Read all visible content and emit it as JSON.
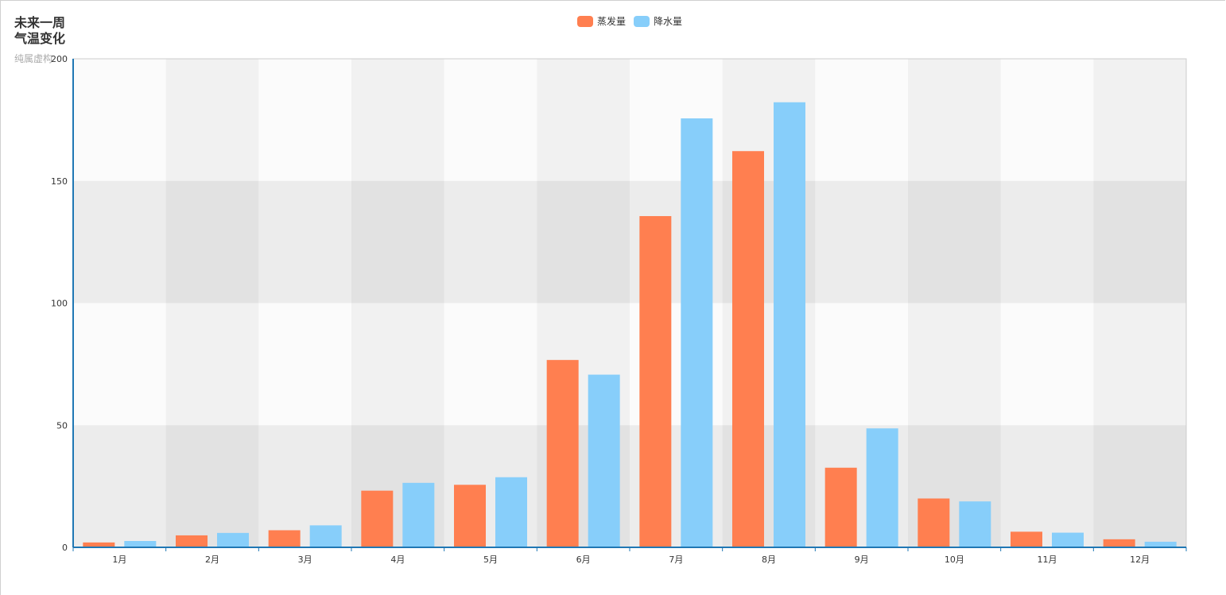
{
  "title": "未来一周\n气温变化",
  "subtitle": "纯属虚构",
  "legend": [
    {
      "name": "蒸发量",
      "color": "#ff7f50"
    },
    {
      "name": "降水量",
      "color": "#87cefa"
    }
  ],
  "chart_data": {
    "type": "bar",
    "categories": [
      "1月",
      "2月",
      "3月",
      "4月",
      "5月",
      "6月",
      "7月",
      "8月",
      "9月",
      "10月",
      "11月",
      "12月"
    ],
    "series": [
      {
        "name": "蒸发量",
        "color": "#ff7f50",
        "values": [
          2.0,
          4.9,
          7.0,
          23.2,
          25.6,
          76.7,
          135.6,
          162.2,
          32.6,
          20.0,
          6.4,
          3.3
        ]
      },
      {
        "name": "降水量",
        "color": "#87cefa",
        "values": [
          2.6,
          5.9,
          9.0,
          26.4,
          28.7,
          70.7,
          175.6,
          182.2,
          48.7,
          18.8,
          6.0,
          2.3
        ]
      }
    ],
    "y_ticks": [
      0,
      50,
      100,
      150,
      200
    ],
    "ylim": [
      0,
      200
    ],
    "axis_color": "#1f77b4",
    "split_area_colors": [
      "rgba(250,250,250,0.3)",
      "rgba(200,200,200,0.3)"
    ]
  }
}
